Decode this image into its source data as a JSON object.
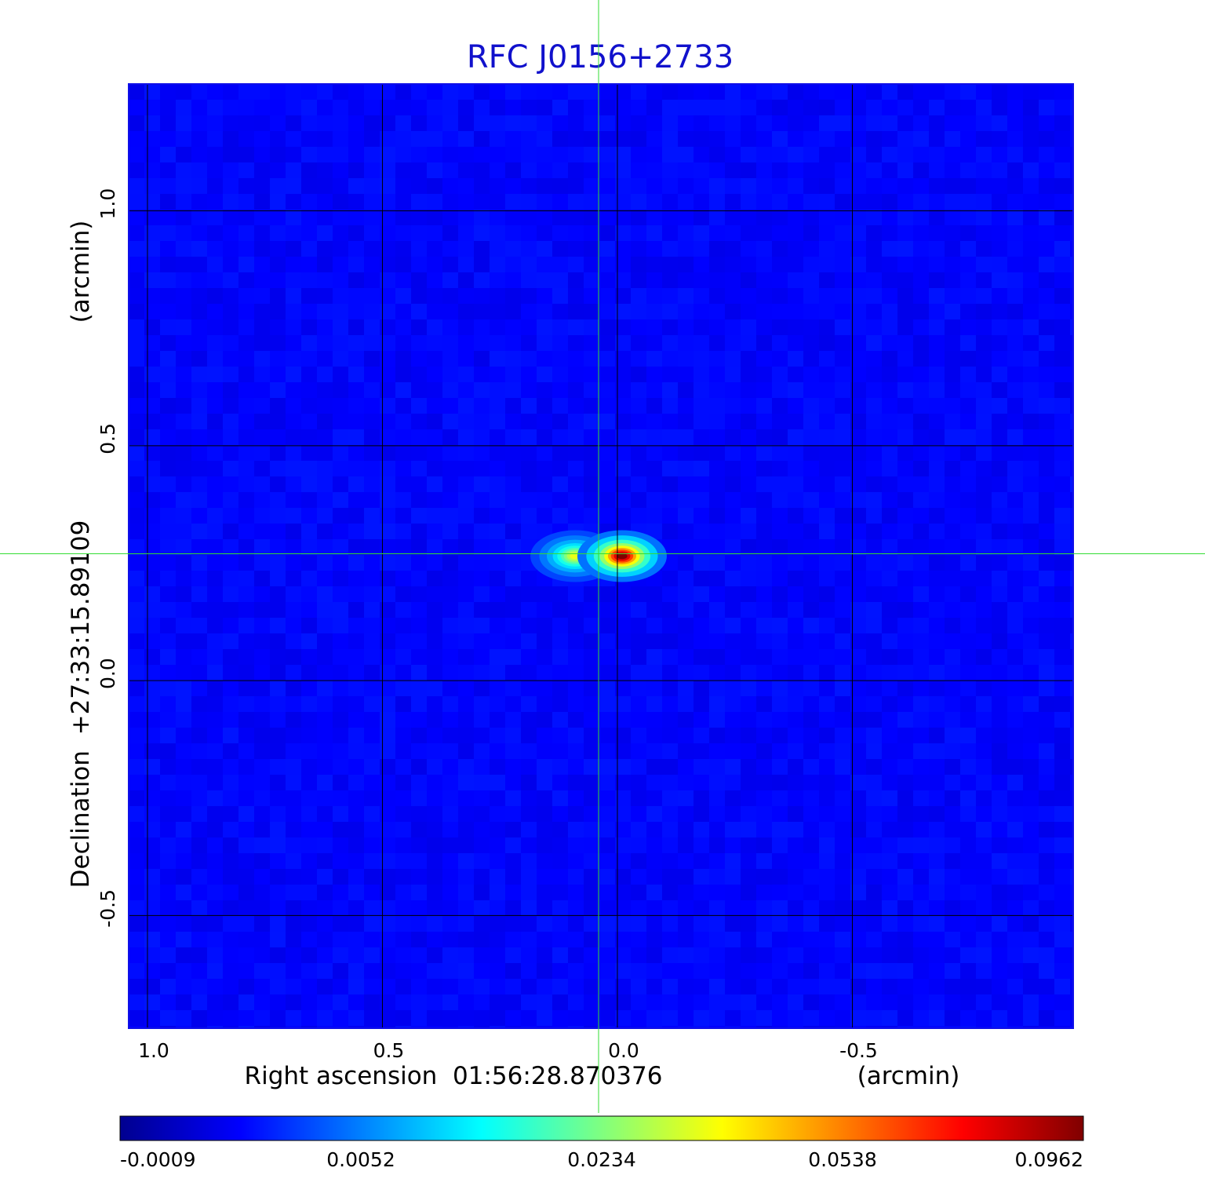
{
  "chart_data": {
    "type": "heatmap",
    "title": "RFC J0156+2733",
    "xlabel": "Right ascension  01:56:28.870376",
    "xunit": "(arcmin)",
    "ylabel": "Declination  +27:33:15.89109",
    "yunit": "(arcmin)",
    "x_axis_reversed": true,
    "xlim": [
      1.04,
      -0.97
    ],
    "ylim": [
      -0.74,
      1.27
    ],
    "xticks": [
      {
        "value": 1.0,
        "label": "1.0"
      },
      {
        "value": 0.5,
        "label": "0.5"
      },
      {
        "value": 0.0,
        "label": "0.0"
      },
      {
        "value": -0.5,
        "label": "-0.5"
      }
    ],
    "yticks": [
      {
        "value": 1.0,
        "label": "1.0"
      },
      {
        "value": 0.5,
        "label": "0.5"
      },
      {
        "value": 0.0,
        "label": "0.0"
      },
      {
        "value": -0.5,
        "label": "-0.5"
      }
    ],
    "grid": true,
    "crosshair": {
      "x": 0.04,
      "y": 0.27,
      "color": "#33dd33"
    },
    "colormap": "jet",
    "background_value": 0.0021,
    "sources": [
      {
        "x": 0.09,
        "y": 0.265,
        "peak": 0.058
      },
      {
        "x": -0.01,
        "y": 0.265,
        "peak": 0.0962
      }
    ],
    "colorbar": {
      "ticks": [
        "-0.0009",
        "0.0052",
        "0.0234",
        "0.0538",
        "0.0962"
      ]
    },
    "colors": {
      "title": "#1111cc",
      "grid": "#000000",
      "frame": "#1010e8"
    }
  }
}
